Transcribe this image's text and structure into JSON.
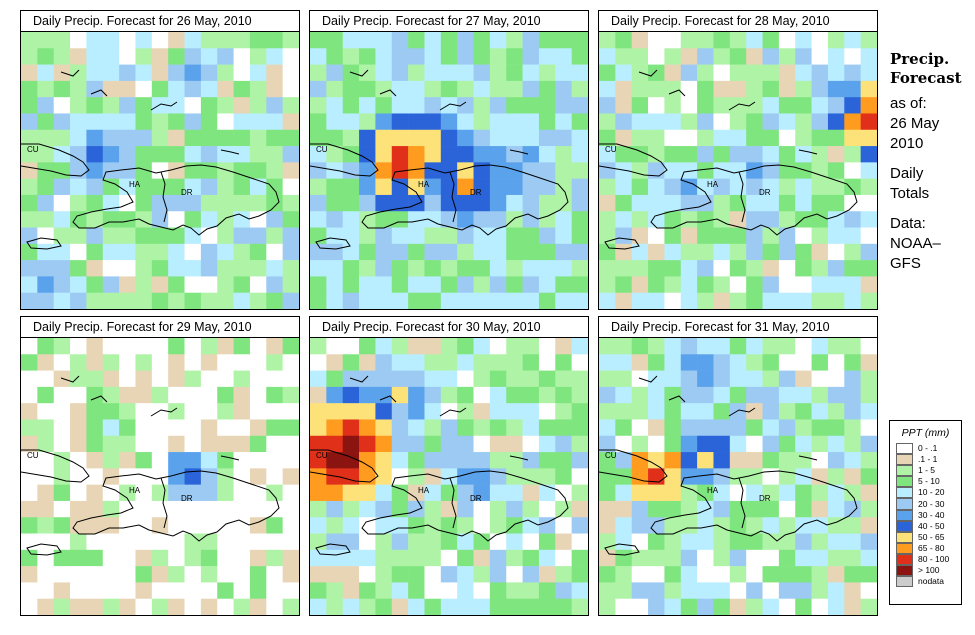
{
  "panels": [
    {
      "title": "Daily Precip. Forecast for  26 May, 2010",
      "dominant": 1,
      "seed": 11,
      "hotspots": [
        [
          4.5,
          7.0,
          3.2,
          7
        ],
        [
          1.0,
          15.0,
          2.5,
          6
        ],
        [
          11.0,
          7.0,
          2.2,
          5
        ],
        [
          10.0,
          2.0,
          2.0,
          6
        ]
      ]
    },
    {
      "title": "Daily Precip. Forecast for  27 May, 2010",
      "dominant": 2,
      "seed": 23,
      "hotspots": [
        [
          5.0,
          7.5,
          3.0,
          10
        ],
        [
          9.0,
          8.5,
          2.8,
          9
        ],
        [
          6.5,
          6.0,
          2.0,
          9
        ],
        [
          12.0,
          8.0,
          2.5,
          7
        ]
      ]
    },
    {
      "title": "Daily Precip. Forecast for  28 May, 2010",
      "dominant": 1,
      "seed": 37,
      "hotspots": [
        [
          16.0,
          5.0,
          2.2,
          10
        ],
        [
          15.0,
          4.0,
          3.0,
          7
        ],
        [
          9.0,
          8.0,
          2.8,
          6
        ],
        [
          5.0,
          9.0,
          3.0,
          6
        ]
      ]
    },
    {
      "title": "Daily Precip. Forecast for  29 May, 2010",
      "dominant": 0,
      "seed": 41,
      "hotspots": [
        [
          10.0,
          8.0,
          1.5,
          7
        ],
        [
          5.0,
          5.0,
          3.0,
          4
        ]
      ]
    },
    {
      "title": "Daily Precip. Forecast for  30 May, 2010",
      "dominant": 1,
      "seed": 53,
      "hotspots": [
        [
          1.5,
          6.5,
          3.2,
          12
        ],
        [
          3.0,
          4.5,
          3.0,
          9
        ],
        [
          5.0,
          3.0,
          2.5,
          7
        ],
        [
          9.5,
          8.0,
          1.5,
          7
        ]
      ]
    },
    {
      "title": "Daily Precip. Forecast for  31 May, 2010",
      "dominant": 1,
      "seed": 67,
      "hotspots": [
        [
          3.0,
          8.0,
          2.0,
          10
        ],
        [
          6.0,
          1.5,
          3.5,
          7
        ],
        [
          6.0,
          6.5,
          2.0,
          8
        ]
      ]
    }
  ],
  "map_labels": {
    "cu": "CU",
    "ha": "HA",
    "dr": "DR"
  },
  "side": {
    "heading_1": "Precip.",
    "heading_2": "Forecast",
    "asof": "as of:",
    "date_1": "26 May",
    "date_2": "2010",
    "totals_1": "Daily",
    "totals_2": "Totals",
    "data_1": "Data:",
    "data_2": "NOAA–",
    "data_3": "GFS"
  },
  "legend": {
    "title": "PPT (mm)",
    "items": [
      {
        "label": "0 - .1",
        "color": "#ffffff"
      },
      {
        "label": ".1 - 1",
        "color": "#e8d5b5"
      },
      {
        "label": "1 - 5",
        "color": "#aef3a6"
      },
      {
        "label": "5 - 10",
        "color": "#7fe57f"
      },
      {
        "label": "10 - 20",
        "color": "#b8eeff"
      },
      {
        "label": "20 - 30",
        "color": "#9ccaf3"
      },
      {
        "label": "30 - 40",
        "color": "#5aa2ec"
      },
      {
        "label": "40 - 50",
        "color": "#2a64d8"
      },
      {
        "label": "50 - 65",
        "color": "#fde27a"
      },
      {
        "label": "65 - 80",
        "color": "#ff9b1f"
      },
      {
        "label": "80 - 100",
        "color": "#e0301a"
      },
      {
        "label": "> 100",
        "color": "#8b1410"
      },
      {
        "label": "nodata",
        "color": "#cccccc"
      }
    ]
  }
}
